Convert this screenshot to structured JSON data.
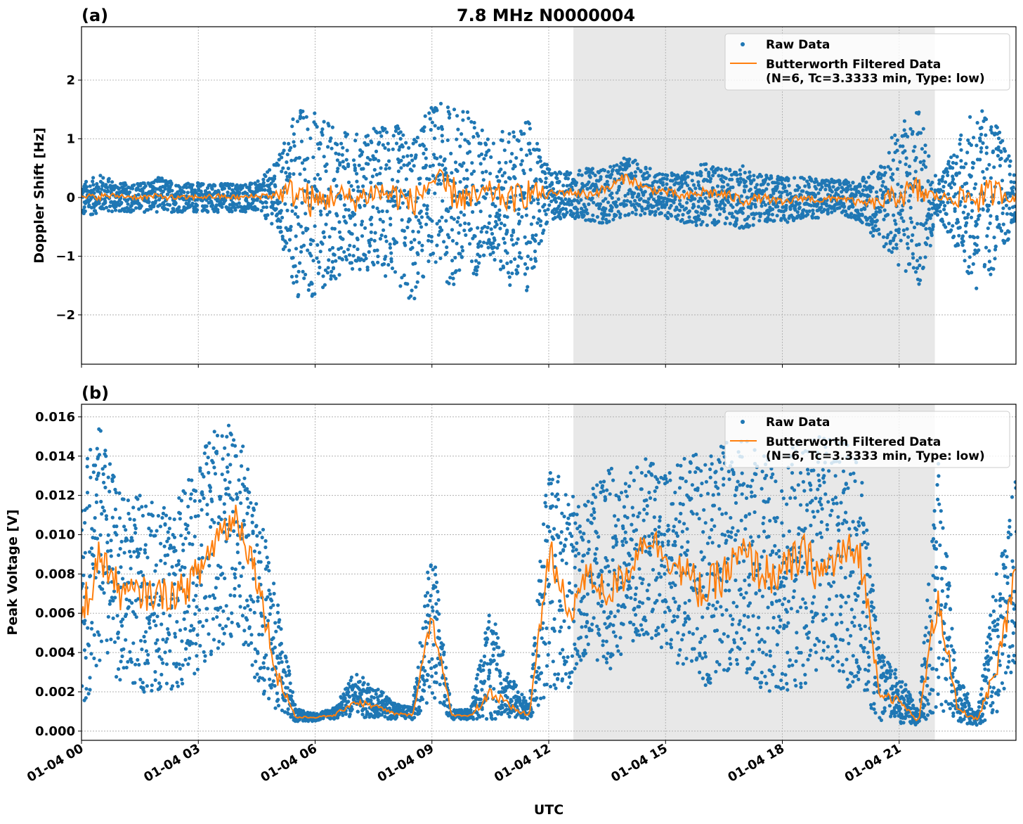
{
  "figure_title": "7.8 MHz N0000004",
  "colors": {
    "raw": "#1f77b4",
    "filtered": "#ff7f0e",
    "shade": "#e8e8e8"
  },
  "chart_data": [
    {
      "type": "scatter",
      "panel_label": "(a)",
      "title": "7.8 MHz N0000004",
      "xlabel": "",
      "ylabel": "Doppler Shift [Hz]",
      "ylim": [
        -2.84,
        2.91
      ],
      "yticks": [
        -2,
        -1,
        0,
        1,
        2
      ],
      "ytick_labels": [
        "−2",
        "−1",
        "0",
        "1",
        "2"
      ],
      "grid": true,
      "legend_position": "top-right",
      "legend": [
        "Raw Data",
        "Butterworth Filtered Data",
        "(N=6, Tc=3.3333 min, Type: low)"
      ],
      "shaded_span": [
        "01-04 12:38",
        "01-04 21:55"
      ],
      "x": [
        "01-04 00:00",
        "01-04 00:30",
        "01-04 01:00",
        "01-04 01:30",
        "01-04 02:00",
        "01-04 02:30",
        "01-04 03:00",
        "01-04 03:30",
        "01-04 04:00",
        "01-04 04:30",
        "01-04 05:00",
        "01-04 05:30",
        "01-04 06:00",
        "01-04 06:30",
        "01-04 07:00",
        "01-04 07:30",
        "01-04 08:00",
        "01-04 08:30",
        "01-04 09:00",
        "01-04 09:30",
        "01-04 10:00",
        "01-04 10:30",
        "01-04 11:00",
        "01-04 11:30",
        "01-04 12:00",
        "01-04 12:30",
        "01-04 13:00",
        "01-04 13:30",
        "01-04 14:00",
        "01-04 14:30",
        "01-04 15:00",
        "01-04 15:30",
        "01-04 16:00",
        "01-04 16:30",
        "01-04 17:00",
        "01-04 17:30",
        "01-04 18:00",
        "01-04 18:30",
        "01-04 19:00",
        "01-04 19:30",
        "01-04 20:00",
        "01-04 20:30",
        "01-04 21:00",
        "01-04 21:30",
        "01-04 22:00",
        "01-04 22:30",
        "01-04 23:00",
        "01-04 23:30",
        "01-05 00:00"
      ],
      "series": [
        {
          "name": "Butterworth Filtered Data",
          "kind": "line",
          "values": [
            0,
            0.02,
            0.03,
            0,
            0.02,
            -0.01,
            0.01,
            0.02,
            0,
            0.02,
            0.05,
            0.1,
            -0.1,
            0.05,
            -0.05,
            0.1,
            0.05,
            -0.1,
            0.3,
            0.1,
            -0.05,
            0.1,
            -0.05,
            0.1,
            0.05,
            0.1,
            0.05,
            0.15,
            0.35,
            0.15,
            0.1,
            0,
            0.1,
            0.05,
            -0.05,
            0,
            -0.1,
            0,
            -0.05,
            0,
            -0.1,
            -0.1,
            0.05,
            0.1,
            0,
            0,
            0,
            0.1,
            0
          ]
        },
        {
          "name": "Raw Data",
          "kind": "scatter-envelope",
          "min": [
            -0.35,
            -0.25,
            -0.25,
            -0.25,
            -0.25,
            -0.25,
            -0.25,
            -0.25,
            -0.25,
            -0.25,
            -0.5,
            -1.8,
            -1.7,
            -1.4,
            -1.2,
            -1.3,
            -1.4,
            -1.9,
            -1.0,
            -1.6,
            -1.4,
            -1.1,
            -1.5,
            -1.6,
            -0.4,
            -0.35,
            -0.4,
            -0.45,
            -0.3,
            -0.3,
            -0.35,
            -0.45,
            -0.5,
            -0.45,
            -0.55,
            -0.4,
            -0.45,
            -0.35,
            -0.35,
            -0.3,
            -0.4,
            -0.8,
            -1.2,
            -1.6,
            -0.3,
            -0.9,
            -1.7,
            -1.2,
            -0.45
          ],
          "max": [
            0.25,
            0.4,
            0.25,
            0.25,
            0.35,
            0.25,
            0.25,
            0.25,
            0.25,
            0.25,
            0.6,
            1.6,
            1.5,
            1.2,
            1.1,
            1.2,
            1.3,
            1.0,
            1.6,
            1.6,
            1.5,
            1.0,
            1.2,
            1.3,
            0.5,
            0.45,
            0.5,
            0.5,
            0.7,
            0.55,
            0.4,
            0.45,
            0.6,
            0.5,
            0.55,
            0.4,
            0.35,
            0.35,
            0.35,
            0.3,
            0.3,
            0.6,
            1.3,
            1.5,
            0.3,
            1.0,
            1.6,
            1.3,
            0.4
          ]
        }
      ]
    },
    {
      "type": "scatter",
      "panel_label": "(b)",
      "xlabel": "UTC",
      "ylabel": "Peak Voltage [V]",
      "ylim": [
        -0.00047,
        0.01664
      ],
      "yticks": [
        0,
        0.002,
        0.004,
        0.006,
        0.008,
        0.01,
        0.012,
        0.014,
        0.016
      ],
      "ytick_labels": [
        "0.000",
        "0.002",
        "0.004",
        "0.006",
        "0.008",
        "0.010",
        "0.012",
        "0.014",
        "0.016"
      ],
      "xticks": [
        "01-04 00",
        "01-04 03",
        "01-04 06",
        "01-04 09",
        "01-04 12",
        "01-04 15",
        "01-04 18",
        "01-04 21"
      ],
      "grid": true,
      "legend_position": "top-right",
      "legend": [
        "Raw Data",
        "Butterworth Filtered Data",
        "(N=6, Tc=3.3333 min, Type: low)"
      ],
      "shaded_span": [
        "01-04 12:38",
        "01-04 21:55"
      ],
      "series": [
        {
          "name": "Butterworth Filtered Data",
          "kind": "line",
          "values": [
            0.006,
            0.009,
            0.007,
            0.007,
            0.007,
            0.007,
            0.008,
            0.01,
            0.011,
            0.008,
            0.003,
            0.0007,
            0.0007,
            0.0008,
            0.0015,
            0.0013,
            0.0009,
            0.0008,
            0.006,
            0.0008,
            0.0008,
            0.002,
            0.0012,
            0.0008,
            0.009,
            0.006,
            0.008,
            0.007,
            0.008,
            0.01,
            0.009,
            0.008,
            0.007,
            0.008,
            0.009,
            0.008,
            0.008,
            0.009,
            0.008,
            0.009,
            0.009,
            0.002,
            0.0015,
            0.0005,
            0.007,
            0.001,
            0.0006,
            0.003,
            0.008
          ]
        },
        {
          "name": "Raw Data",
          "kind": "scatter-envelope",
          "min": [
            0.0012,
            0.003,
            0.0025,
            0.002,
            0.002,
            0.002,
            0.003,
            0.004,
            0.005,
            0.0025,
            0.0008,
            0.0005,
            0.0005,
            0.0006,
            0.0007,
            0.0007,
            0.0006,
            0.0006,
            0.0015,
            0.0006,
            0.0006,
            0.0006,
            0.0006,
            0.0006,
            0.002,
            0.002,
            0.004,
            0.003,
            0.004,
            0.005,
            0.004,
            0.003,
            0.002,
            0.003,
            0.003,
            0.002,
            0.002,
            0.002,
            0.003,
            0.002,
            0.002,
            0.0005,
            0.0004,
            0.0003,
            0.001,
            0.0004,
            0.0003,
            0.0006,
            0.003
          ],
          "max": [
            0.014,
            0.0155,
            0.012,
            0.012,
            0.0115,
            0.012,
            0.014,
            0.0155,
            0.0158,
            0.012,
            0.007,
            0.0012,
            0.0009,
            0.0012,
            0.003,
            0.0024,
            0.0015,
            0.0012,
            0.01,
            0.0011,
            0.0011,
            0.0064,
            0.003,
            0.0013,
            0.015,
            0.012,
            0.012,
            0.0135,
            0.013,
            0.014,
            0.013,
            0.014,
            0.0145,
            0.015,
            0.015,
            0.014,
            0.014,
            0.015,
            0.015,
            0.015,
            0.014,
            0.004,
            0.003,
            0.001,
            0.014,
            0.003,
            0.001,
            0.008,
            0.013
          ]
        }
      ]
    }
  ]
}
